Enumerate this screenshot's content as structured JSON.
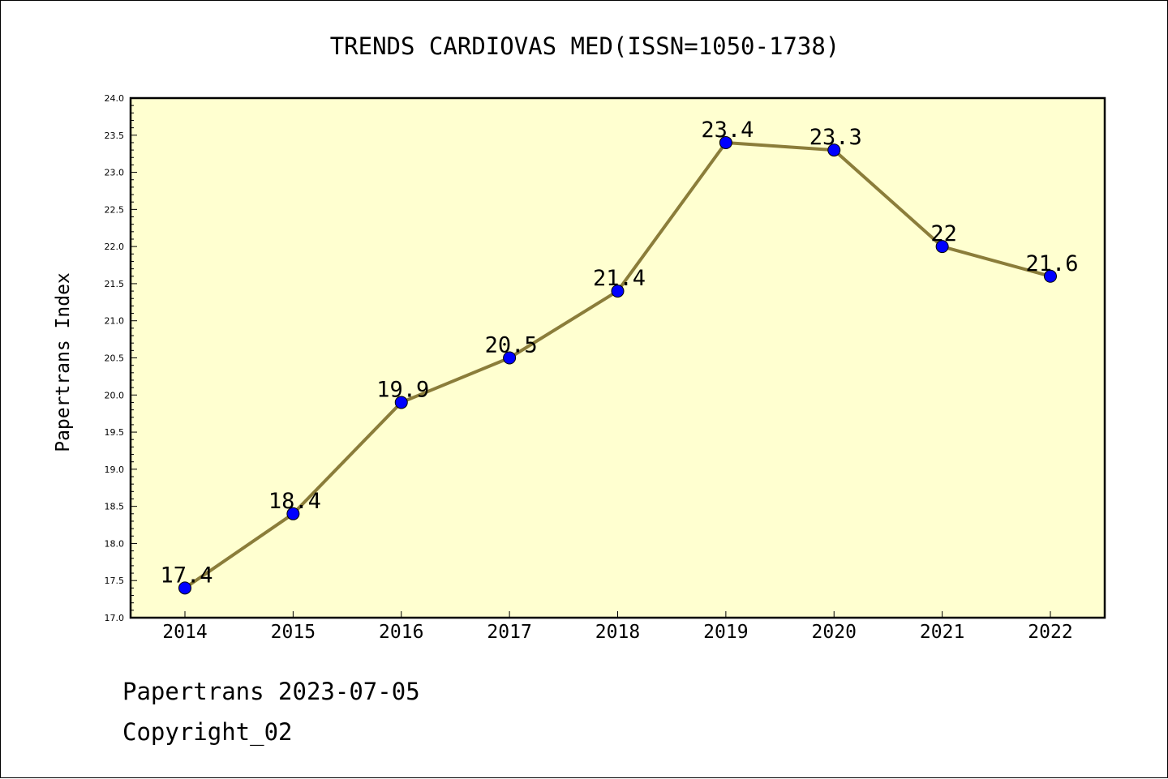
{
  "chart_data": {
    "type": "line",
    "title": "TRENDS CARDIOVAS MED(ISSN=1050-1738)",
    "xlabel": "",
    "ylabel": "Papertrans Index",
    "x": [
      "2014",
      "2015",
      "2016",
      "2017",
      "2018",
      "2019",
      "2020",
      "2021",
      "2022"
    ],
    "values": [
      17.4,
      18.4,
      19.9,
      20.5,
      21.4,
      23.4,
      23.3,
      22,
      21.6
    ],
    "data_labels": [
      "17.4",
      "18.4",
      "19.9",
      "20.5",
      "21.4",
      "23.4",
      "23.3",
      "22",
      "21.6"
    ],
    "ylim": [
      17.0,
      24.0
    ],
    "yticks": [
      "17.0",
      "17.5",
      "18.0",
      "18.5",
      "19.0",
      "19.5",
      "20.0",
      "20.5",
      "21.0",
      "21.5",
      "22.0",
      "22.5",
      "23.0",
      "23.5",
      "24.0"
    ],
    "grid": false,
    "colors": {
      "plot_background": "#ffffd0",
      "line": "#8b7d3a",
      "marker": "#0000ff"
    }
  },
  "footer": {
    "source": "Papertrans 2023-07-05",
    "copyright": "Copyright_02"
  }
}
